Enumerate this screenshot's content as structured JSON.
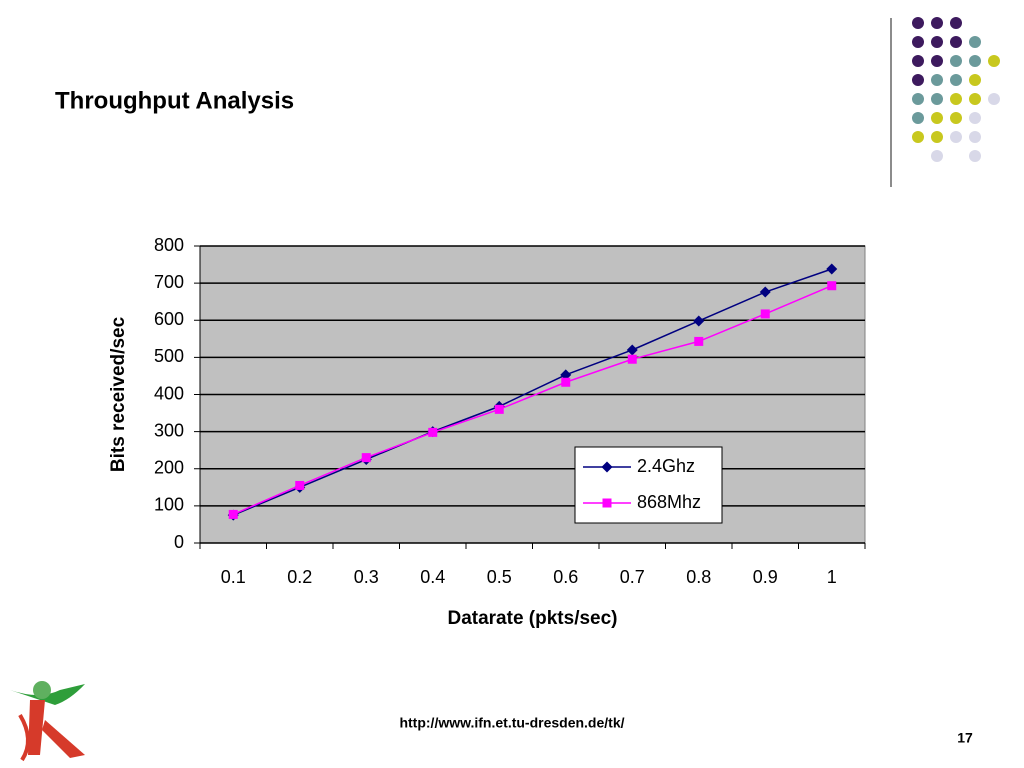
{
  "chart_data": {
    "type": "line",
    "title": "Throughput Analysis",
    "x_label": "Datarate (pkts/sec)",
    "y_label": "Bits received/sec",
    "categories": [
      "0.1",
      "0.2",
      "0.3",
      "0.4",
      "0.5",
      "0.6",
      "0.7",
      "0.8",
      "0.9",
      "1"
    ],
    "series": [
      {
        "name": "2.4Ghz",
        "color": "#000080",
        "marker": "diamond",
        "values": [
          75,
          150,
          225,
          300,
          368,
          453,
          520,
          598,
          676,
          738
        ]
      },
      {
        "name": "868Mhz",
        "color": "#ff00ff",
        "marker": "square",
        "values": [
          77,
          155,
          230,
          298,
          360,
          433,
          495,
          543,
          617,
          693
        ]
      }
    ],
    "ylim": [
      0,
      800
    ],
    "yticks": [
      0,
      100,
      200,
      300,
      400,
      500,
      600,
      700,
      800
    ],
    "grid": true,
    "plot_background": "#c0c0c0",
    "legend": "lower-right"
  },
  "footer": {
    "url": "http://www.ifn.et.tu-dresden.de/tk/",
    "page_number": "17"
  }
}
